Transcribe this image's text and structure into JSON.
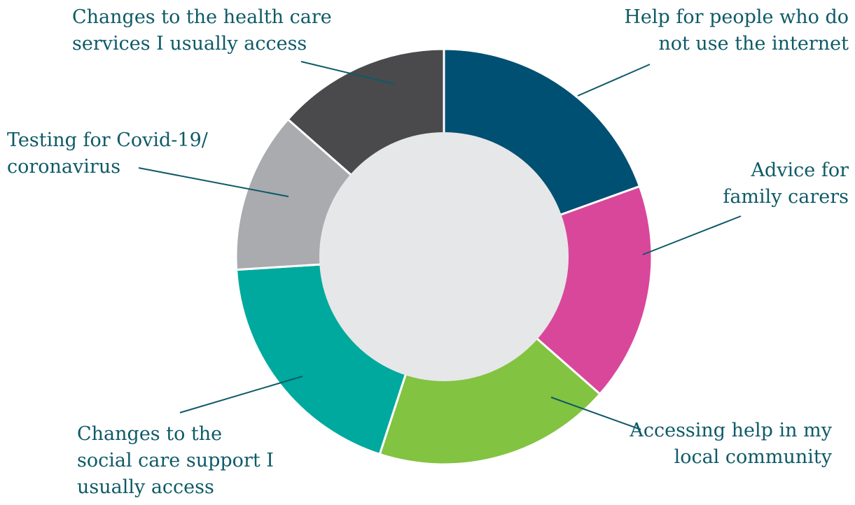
{
  "chart_data": {
    "type": "pie",
    "donut": true,
    "categories": [
      "Help for people who do not use the internet",
      "Advice for family carers",
      "Accessing help in my local community",
      "Changes to the social care support I usually access",
      "Testing for Covid-19/ coronavirus",
      "Changes to the health care services I usually access"
    ],
    "values": [
      19.5,
      17,
      18.5,
      19,
      12.5,
      13.5
    ],
    "colors": [
      "#005073",
      "#d9479b",
      "#82c341",
      "#00a99d",
      "#a9abae",
      "#4a4a4c"
    ],
    "center_color": "#e6e7e8",
    "label_color": "#0e5a67",
    "labels": [
      [
        "Help for people who do",
        "not use the internet"
      ],
      [
        "Advice for",
        "family carers"
      ],
      [
        "Accessing help in my",
        "local community"
      ],
      [
        "Changes to the",
        "social care support I",
        "usually access"
      ],
      [
        "Testing for Covid-19/",
        "coronavirus"
      ],
      [
        "Changes to the health care",
        "services I usually access"
      ]
    ]
  }
}
